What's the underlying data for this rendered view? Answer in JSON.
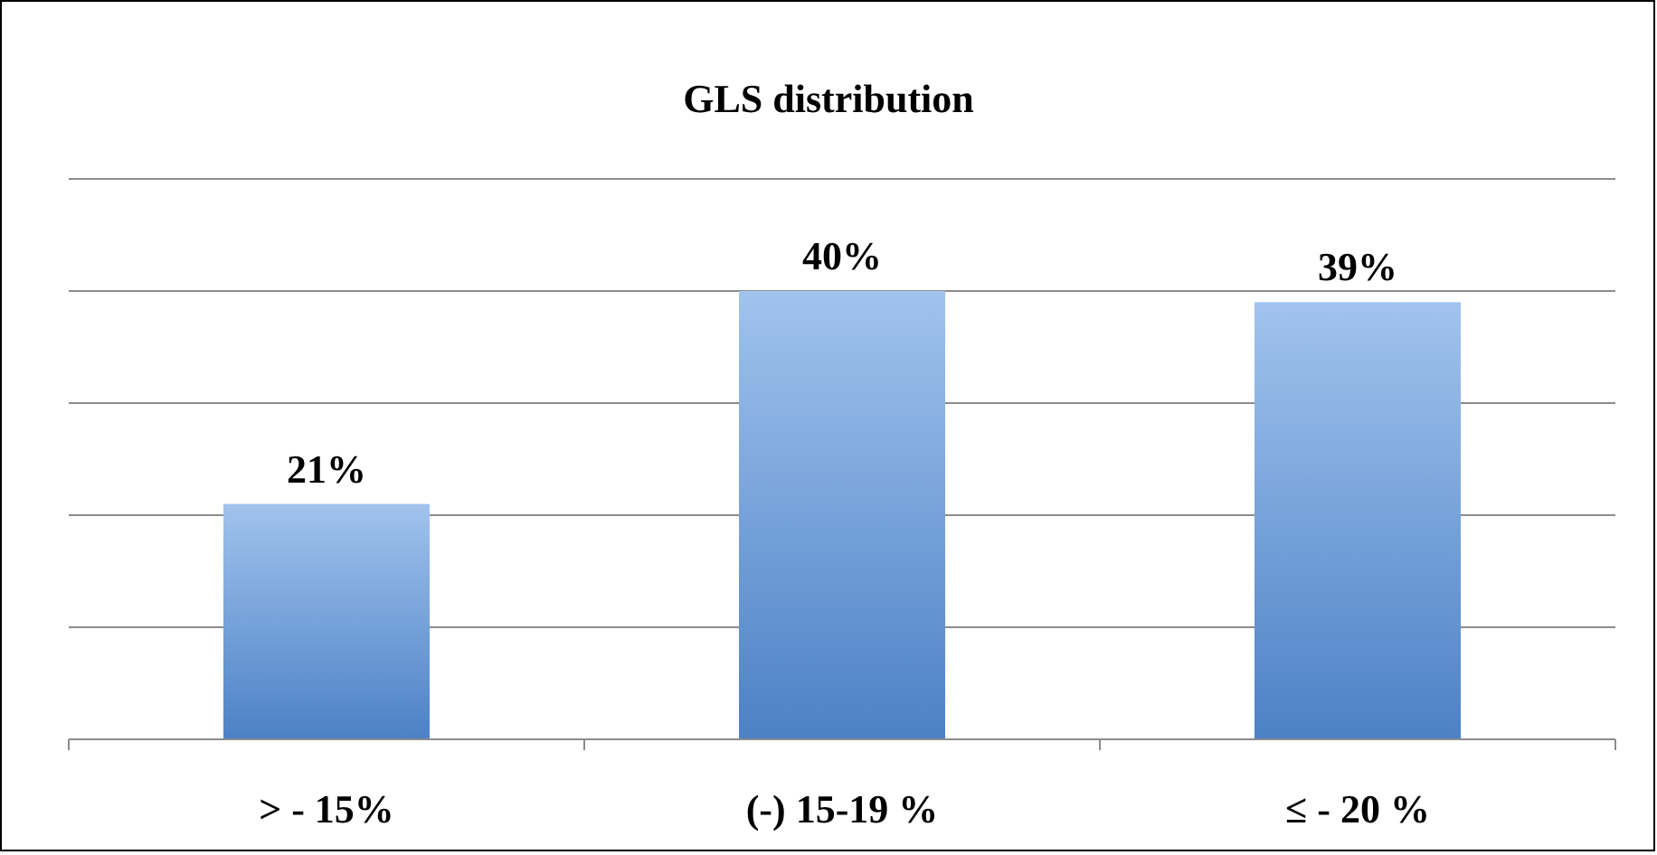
{
  "chart_data": {
    "type": "bar",
    "title": "GLS distribution",
    "categories": [
      "> - 15%",
      "(-) 15-19 %",
      "≤ - 20 %"
    ],
    "values": [
      21,
      40,
      39
    ],
    "color": "#6ea2e4",
    "ylim": [
      0,
      50
    ],
    "yticks": [
      {
        "value": 0,
        "label": null
      },
      {
        "value": 10,
        "label": null
      },
      {
        "value": 20,
        "label": null
      },
      {
        "value": 30,
        "label": null
      },
      {
        "value": 40,
        "label": null
      },
      {
        "value": 50,
        "label": null
      }
    ],
    "tick_labels": "x",
    "grid": "y",
    "data_labels": true,
    "value_labels": [
      "21%",
      "40%",
      "39%"
    ]
  }
}
